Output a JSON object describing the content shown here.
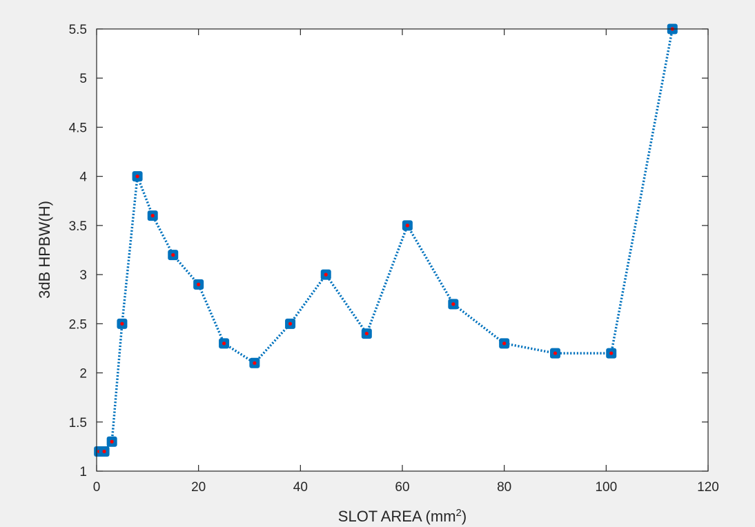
{
  "chart_data": {
    "type": "line",
    "title": "",
    "xlabel": "SLOT AREA (mm",
    "xlabel_sup": "2",
    "xlabel_close": ")",
    "ylabel": "3dB HPBW(H)",
    "xlim": [
      0,
      120
    ],
    "ylim": [
      1,
      5.5
    ],
    "xticks": [
      0,
      20,
      40,
      60,
      80,
      100,
      120
    ],
    "yticks": [
      1,
      1.5,
      2,
      2.5,
      3,
      3.5,
      4,
      4.5,
      5,
      5.5
    ],
    "grid": false,
    "legend": "none",
    "series": [
      {
        "x": [
          0.5,
          1.5,
          3,
          5,
          8,
          11,
          15,
          20,
          25,
          31,
          38,
          45,
          53,
          61,
          70,
          80,
          90,
          101,
          113
        ],
        "y": [
          1.2,
          1.2,
          1.3,
          2.5,
          4.0,
          3.6,
          3.2,
          2.9,
          2.3,
          2.1,
          2.5,
          3.0,
          2.4,
          3.5,
          2.7,
          2.3,
          2.2,
          2.2,
          5.5
        ],
        "line_color": "#0072bd",
        "marker_color": "#0072bd",
        "marker_center_color": "#ff0000"
      }
    ]
  }
}
